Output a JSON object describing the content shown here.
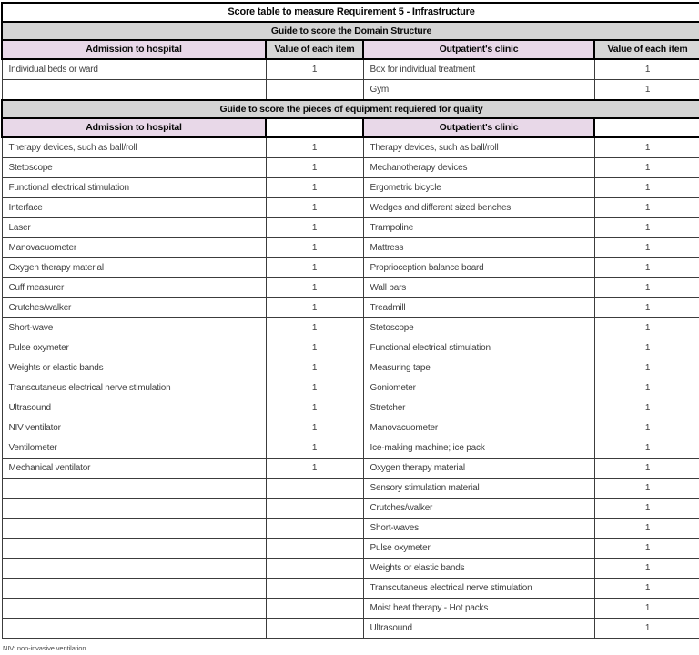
{
  "table": {
    "title": "Score table to measure Requirement 5 - Infrastructure",
    "footnote": "NIV: non-invasive ventilation.",
    "sections": [
      {
        "heading": "Guide to score the Domain Structure",
        "columns": [
          "Admission to hospital",
          "Value of each item",
          "Outpatient's clinic",
          "Value of each item"
        ],
        "header_styles": [
          "pink",
          "gray",
          "pink",
          "gray"
        ],
        "rows": [
          [
            "Individual beds or ward",
            "1",
            "Box for individual treatment",
            "1"
          ],
          [
            "",
            "",
            "Gym",
            "1"
          ]
        ]
      },
      {
        "heading": "Guide to score the pieces of equipment requiered for quality",
        "columns": [
          "Admission to hospital",
          "",
          "Outpatient's clinic",
          ""
        ],
        "header_styles": [
          "pink",
          "white",
          "pink",
          "white"
        ],
        "rows": [
          [
            "Therapy devices, such as ball/roll",
            "1",
            "Therapy devices, such as ball/roll",
            "1"
          ],
          [
            "Stetoscope",
            "1",
            "Mechanotherapy devices",
            "1"
          ],
          [
            "Functional electrical stimulation",
            "1",
            "Ergometric bicycle",
            "1"
          ],
          [
            "Interface",
            "1",
            "Wedges and different sized benches",
            "1"
          ],
          [
            "Laser",
            "1",
            "Trampoline",
            "1"
          ],
          [
            "Manovacuometer",
            "1",
            "Mattress",
            "1"
          ],
          [
            "Oxygen therapy material",
            "1",
            "Proprioception balance board",
            "1"
          ],
          [
            "Cuff measurer",
            "1",
            "Wall bars",
            "1"
          ],
          [
            "Crutches/walker",
            "1",
            "Treadmill",
            "1"
          ],
          [
            "Short-wave",
            "1",
            "Stetoscope",
            "1"
          ],
          [
            "Pulse oxymeter",
            "1",
            "Functional electrical stimulation",
            "1"
          ],
          [
            "Weights or elastic bands",
            "1",
            "Measuring tape",
            "1"
          ],
          [
            "Transcutaneus electrical nerve stimulation",
            "1",
            "Goniometer",
            "1"
          ],
          [
            "Ultrasound",
            "1",
            "Stretcher",
            "1"
          ],
          [
            "NIV ventilator",
            "1",
            "Manovacuometer",
            "1"
          ],
          [
            "Ventilometer",
            "1",
            "Ice-making machine; ice pack",
            "1"
          ],
          [
            "Mechanical ventilator",
            "1",
            "Oxygen therapy material",
            "1"
          ],
          [
            "",
            "",
            "Sensory stimulation material",
            "1"
          ],
          [
            "",
            "",
            "Crutches/walker",
            "1"
          ],
          [
            "",
            "",
            "Short-waves",
            "1"
          ],
          [
            "",
            "",
            "Pulse oxymeter",
            "1"
          ],
          [
            "",
            "",
            "Weights or elastic bands",
            "1"
          ],
          [
            "",
            "",
            "Transcutaneus electrical nerve stimulation",
            "1"
          ],
          [
            "",
            "",
            "Moist heat therapy - Hot packs",
            "1"
          ],
          [
            "",
            "",
            "Ultrasound",
            "1"
          ]
        ]
      }
    ]
  },
  "colors": {
    "section_heading_bg": "#d4d4d4",
    "header_pink_bg": "#e8d8e8",
    "header_gray_bg": "#d7d7d7",
    "border": "#000000"
  }
}
